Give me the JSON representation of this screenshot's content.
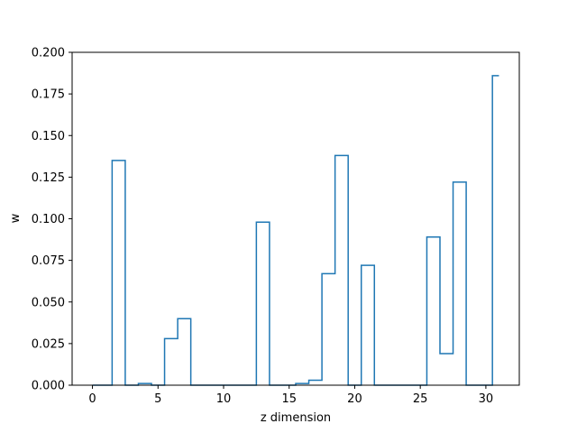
{
  "chart_data": {
    "type": "line",
    "drawstyle": "steps-mid",
    "title": "",
    "xlabel": "z dimension",
    "ylabel": "w",
    "xlim": [
      -1.55,
      32.55
    ],
    "ylim": [
      0,
      0.2
    ],
    "x_ticks": [
      0,
      5,
      10,
      15,
      20,
      25,
      30
    ],
    "x_tick_labels": [
      "0",
      "5",
      "10",
      "15",
      "20",
      "25",
      "30"
    ],
    "y_ticks": [
      0,
      0.025,
      0.05,
      0.075,
      0.1,
      0.125,
      0.15,
      0.175,
      0.2
    ],
    "y_tick_labels": [
      "0.000",
      "0.025",
      "0.050",
      "0.075",
      "0.100",
      "0.125",
      "0.150",
      "0.175",
      "0.200"
    ],
    "grid": false,
    "color": "#1f77b4",
    "x": [
      0,
      1,
      2,
      3,
      4,
      5,
      6,
      7,
      8,
      9,
      10,
      11,
      12,
      13,
      14,
      15,
      16,
      17,
      18,
      19,
      20,
      21,
      22,
      23,
      24,
      25,
      26,
      27,
      28,
      29,
      30,
      31
    ],
    "values": [
      0,
      0,
      0.135,
      0,
      0.001,
      0,
      0.028,
      0.04,
      0,
      0,
      0,
      0,
      0,
      0.098,
      0,
      0,
      0.001,
      0.003,
      0.067,
      0.138,
      0,
      0.072,
      0,
      0,
      0,
      0,
      0.089,
      0.019,
      0.122,
      0,
      0,
      0.186
    ]
  }
}
